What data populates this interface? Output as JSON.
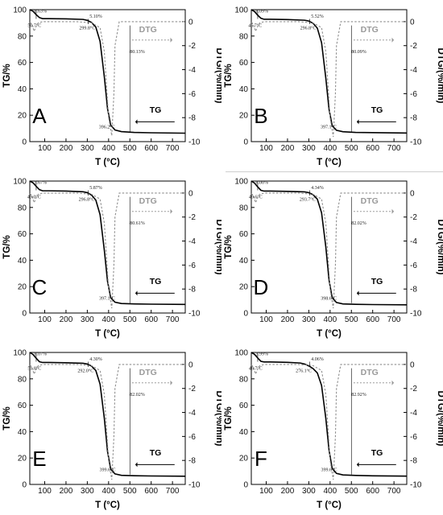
{
  "chart_data": [
    {
      "type": "line",
      "panel_label": "A",
      "xlabel": "T (°C)",
      "ylabel_left": "TG/%",
      "ylabel_right": "DTG/(%/min)",
      "xlim": [
        30,
        760
      ],
      "ylim_left": [
        0,
        100
      ],
      "ylim_right": [
        -10,
        1
      ],
      "x_ticks": [
        100,
        200,
        300,
        400,
        500,
        600,
        700
      ],
      "y_left_ticks": [
        0,
        20,
        40,
        60,
        80,
        100
      ],
      "y_right_ticks": [
        0,
        -2,
        -4,
        -6,
        -8,
        -10
      ],
      "series": [
        {
          "name": "TG",
          "style": "solid",
          "x": [
            30,
            45,
            60,
            75,
            90,
            120,
            200,
            280,
            300,
            320,
            340,
            360,
            380,
            395,
            410,
            430,
            460,
            520,
            600,
            760
          ],
          "y": [
            100,
            98.8,
            96.2,
            94.0,
            93.2,
            93.2,
            93.0,
            92.6,
            91.9,
            90.3,
            86.8,
            76.0,
            49.0,
            25.0,
            12.5,
            8.8,
            7.6,
            7.0,
            6.7,
            6.4
          ]
        },
        {
          "name": "DTG",
          "style": "dashed",
          "x": [
            30,
            40,
            50,
            60,
            70,
            90,
            150,
            250,
            320,
            360,
            380,
            400,
            415,
            425,
            430,
            450,
            500,
            600,
            760
          ],
          "y": [
            -0.05,
            -0.2,
            -0.8,
            -0.4,
            -0.1,
            0,
            0,
            0,
            -0.1,
            -0.5,
            -2.5,
            -8.0,
            -9.5,
            -6.0,
            -2.0,
            0,
            0,
            0,
            0
          ]
        }
      ],
      "annotations": [
        {
          "text": "6.63%",
          "x": 80,
          "y": 98
        },
        {
          "text": "50.7°C",
          "x": 52,
          "y": 87
        },
        {
          "text": "5.10%",
          "x": 340,
          "y": 94
        },
        {
          "text": "299.8°C",
          "x": 300,
          "y": 85
        },
        {
          "text": "80.13%",
          "x": 535,
          "y": 67
        },
        {
          "text": "396.2°C",
          "x": 392,
          "y": 10
        }
      ]
    },
    {
      "type": "line",
      "panel_label": "B",
      "xlabel": "T (°C)",
      "ylabel_left": "TG/%",
      "ylabel_right": "DTG/(%/min)",
      "xlim": [
        30,
        760
      ],
      "ylim_left": [
        0,
        100
      ],
      "ylim_right": [
        -10,
        1
      ],
      "x_ticks": [
        100,
        200,
        300,
        400,
        500,
        600,
        700
      ],
      "y_left_ticks": [
        0,
        20,
        40,
        60,
        80,
        100
      ],
      "y_right_ticks": [
        0,
        -2,
        -4,
        -6,
        -8,
        -10
      ],
      "series": [
        {
          "name": "TG",
          "style": "solid",
          "x": [
            30,
            45,
            60,
            75,
            90,
            120,
            200,
            280,
            300,
            320,
            340,
            360,
            380,
            395,
            410,
            430,
            460,
            520,
            600,
            760
          ],
          "y": [
            100,
            98.6,
            95.8,
            93.5,
            92.7,
            92.7,
            92.5,
            92.0,
            91.4,
            89.7,
            86.0,
            75.0,
            48.0,
            24.5,
            12.0,
            8.6,
            7.5,
            7.0,
            6.8,
            6.5
          ]
        },
        {
          "name": "DTG",
          "style": "dashed",
          "x": [
            30,
            40,
            50,
            60,
            70,
            90,
            150,
            250,
            320,
            360,
            380,
            400,
            415,
            425,
            430,
            450,
            500,
            600,
            760
          ],
          "y": [
            -0.05,
            -0.2,
            -0.8,
            -0.4,
            -0.1,
            0,
            0,
            0,
            -0.1,
            -0.5,
            -2.5,
            -8.0,
            -9.6,
            -6.0,
            -2.0,
            0,
            0,
            0,
            0
          ]
        }
      ],
      "annotations": [
        {
          "text": "6.09%",
          "x": 80,
          "y": 98
        },
        {
          "text": "46.7°C",
          "x": 48,
          "y": 87
        },
        {
          "text": "5.52%",
          "x": 340,
          "y": 94
        },
        {
          "text": "296.8°C",
          "x": 297,
          "y": 85
        },
        {
          "text": "80.09%",
          "x": 535,
          "y": 67
        },
        {
          "text": "397.1°C",
          "x": 393,
          "y": 10
        }
      ]
    },
    {
      "type": "line",
      "panel_label": "C",
      "xlabel": "T (°C)",
      "ylabel_left": "TG/%",
      "ylabel_right": "DTG/(%/min)",
      "xlim": [
        30,
        760
      ],
      "ylim_left": [
        0,
        100
      ],
      "ylim_right": [
        -10,
        1
      ],
      "x_ticks": [
        100,
        200,
        300,
        400,
        500,
        600,
        700
      ],
      "y_left_ticks": [
        0,
        20,
        40,
        60,
        80,
        100
      ],
      "y_right_ticks": [
        0,
        -2,
        -4,
        -6,
        -8,
        -10
      ],
      "series": [
        {
          "name": "TG",
          "style": "solid",
          "x": [
            30,
            45,
            60,
            75,
            90,
            120,
            200,
            280,
            300,
            320,
            340,
            360,
            380,
            395,
            410,
            430,
            460,
            520,
            600,
            760
          ],
          "y": [
            100,
            98.7,
            96.0,
            93.5,
            92.6,
            92.6,
            92.4,
            91.9,
            91.2,
            89.4,
            85.6,
            74.5,
            47.5,
            24.0,
            11.5,
            8.2,
            7.2,
            6.9,
            6.7,
            6.5
          ]
        },
        {
          "name": "DTG",
          "style": "dashed",
          "x": [
            30,
            40,
            50,
            60,
            70,
            90,
            150,
            250,
            320,
            360,
            380,
            400,
            415,
            425,
            430,
            450,
            500,
            600,
            760
          ],
          "y": [
            -0.05,
            -0.2,
            -0.8,
            -0.4,
            -0.1,
            0,
            0,
            0,
            -0.1,
            -0.5,
            -2.5,
            -8.0,
            -9.6,
            -6.0,
            -2.0,
            0,
            0,
            0,
            0
          ]
        }
      ],
      "annotations": [
        {
          "text": "5.67%",
          "x": 80,
          "y": 98
        },
        {
          "text": "49.0°C",
          "x": 50,
          "y": 87
        },
        {
          "text": "5.87%",
          "x": 340,
          "y": 94
        },
        {
          "text": "296.8°C",
          "x": 297,
          "y": 85
        },
        {
          "text": "80.61%",
          "x": 535,
          "y": 67
        },
        {
          "text": "397.1°C",
          "x": 393,
          "y": 10
        }
      ]
    },
    {
      "type": "line",
      "panel_label": "D",
      "xlabel": "T (°C)",
      "ylabel_left": "TG/%",
      "ylabel_right": "DTG/(%/min)",
      "xlim": [
        30,
        760
      ],
      "ylim_left": [
        0,
        100
      ],
      "ylim_right": [
        -10,
        1
      ],
      "x_ticks": [
        100,
        200,
        300,
        400,
        500,
        600,
        700
      ],
      "y_left_ticks": [
        0,
        20,
        40,
        60,
        80,
        100
      ],
      "y_right_ticks": [
        0,
        -2,
        -4,
        -6,
        -8,
        -10
      ],
      "series": [
        {
          "name": "TG",
          "style": "solid",
          "x": [
            30,
            45,
            60,
            75,
            90,
            120,
            200,
            280,
            300,
            320,
            340,
            360,
            380,
            395,
            410,
            430,
            460,
            520,
            600,
            760
          ],
          "y": [
            100,
            98.5,
            95.6,
            93.0,
            92.4,
            92.4,
            92.2,
            91.8,
            91.2,
            89.7,
            86.3,
            76.0,
            50.0,
            25.0,
            11.5,
            8.0,
            6.9,
            6.6,
            6.4,
            6.2
          ]
        },
        {
          "name": "DTG",
          "style": "dashed",
          "x": [
            30,
            40,
            50,
            60,
            70,
            90,
            150,
            250,
            320,
            360,
            380,
            400,
            415,
            425,
            430,
            450,
            500,
            600,
            760
          ],
          "y": [
            -0.05,
            -0.2,
            -0.8,
            -0.4,
            -0.1,
            0,
            0,
            0,
            -0.1,
            -0.5,
            -2.5,
            -8.0,
            -9.6,
            -6.0,
            -2.0,
            0,
            0,
            0,
            0
          ]
        }
      ],
      "annotations": [
        {
          "text": "6.00%",
          "x": 80,
          "y": 98
        },
        {
          "text": "49.6°C",
          "x": 50,
          "y": 87
        },
        {
          "text": "4.34%",
          "x": 340,
          "y": 94
        },
        {
          "text": "293.7°C",
          "x": 294,
          "y": 85
        },
        {
          "text": "82.02%",
          "x": 535,
          "y": 67
        },
        {
          "text": "398.6°C",
          "x": 394,
          "y": 10
        }
      ]
    },
    {
      "type": "line",
      "panel_label": "E",
      "xlabel": "T (°C)",
      "ylabel_left": "TG/%",
      "ylabel_right": "DTG/(%/min)",
      "xlim": [
        30,
        760
      ],
      "ylim_left": [
        0,
        100
      ],
      "ylim_right": [
        -10,
        1
      ],
      "x_ticks": [
        100,
        200,
        300,
        400,
        500,
        600,
        700
      ],
      "y_left_ticks": [
        0,
        20,
        40,
        60,
        80,
        100
      ],
      "y_right_ticks": [
        0,
        -2,
        -4,
        -6,
        -8,
        -10
      ],
      "series": [
        {
          "name": "TG",
          "style": "solid",
          "x": [
            30,
            45,
            60,
            75,
            90,
            120,
            200,
            280,
            300,
            320,
            340,
            360,
            380,
            395,
            410,
            430,
            460,
            520,
            600,
            760
          ],
          "y": [
            100,
            98.5,
            95.6,
            93.0,
            92.4,
            92.4,
            92.2,
            91.8,
            91.2,
            89.7,
            86.3,
            76.0,
            50.0,
            25.0,
            11.5,
            8.0,
            6.9,
            6.6,
            6.4,
            6.2
          ]
        },
        {
          "name": "DTG",
          "style": "dashed",
          "x": [
            30,
            40,
            50,
            60,
            70,
            90,
            150,
            250,
            320,
            360,
            380,
            400,
            415,
            425,
            430,
            450,
            500,
            600,
            760
          ],
          "y": [
            -0.05,
            -0.2,
            -0.8,
            -0.4,
            -0.1,
            0,
            0,
            0,
            -0.1,
            -0.5,
            -2.5,
            -8.0,
            -9.6,
            -6.0,
            -2.0,
            0,
            0,
            0,
            0
          ]
        }
      ],
      "annotations": [
        {
          "text": "6.07%",
          "x": 80,
          "y": 98
        },
        {
          "text": "51.8°C",
          "x": 52,
          "y": 87
        },
        {
          "text": "4.30%",
          "x": 340,
          "y": 94
        },
        {
          "text": "292.0°C",
          "x": 292,
          "y": 85
        },
        {
          "text": "82.02%",
          "x": 535,
          "y": 67
        },
        {
          "text": "399.6°C",
          "x": 395,
          "y": 10
        }
      ]
    },
    {
      "type": "line",
      "panel_label": "F",
      "xlabel": "T (°C)",
      "ylabel_left": "TG/%",
      "ylabel_right": "DTG/(%/min)",
      "xlim": [
        30,
        760
      ],
      "ylim_left": [
        0,
        100
      ],
      "ylim_right": [
        -10,
        1
      ],
      "x_ticks": [
        100,
        200,
        300,
        400,
        500,
        600,
        700
      ],
      "y_left_ticks": [
        0,
        20,
        40,
        60,
        80,
        100
      ],
      "y_right_ticks": [
        0,
        -2,
        -4,
        -6,
        -8,
        -10
      ],
      "series": [
        {
          "name": "TG",
          "style": "solid",
          "x": [
            30,
            45,
            60,
            75,
            90,
            120,
            200,
            260,
            280,
            300,
            320,
            340,
            360,
            380,
            395,
            410,
            430,
            460,
            520,
            600,
            760
          ],
          "y": [
            100,
            98.6,
            95.8,
            93.3,
            92.8,
            92.8,
            92.5,
            92.0,
            91.2,
            89.8,
            87.8,
            84.5,
            75.0,
            50.0,
            26.0,
            12.0,
            8.4,
            7.2,
            6.8,
            6.5,
            6.3
          ]
        },
        {
          "name": "DTG",
          "style": "dashed",
          "x": [
            30,
            40,
            50,
            60,
            70,
            90,
            150,
            250,
            320,
            360,
            380,
            400,
            415,
            425,
            430,
            450,
            500,
            600,
            760
          ],
          "y": [
            -0.05,
            -0.2,
            -0.8,
            -0.4,
            -0.1,
            0,
            0,
            0,
            -0.1,
            -0.5,
            -2.5,
            -8.0,
            -9.6,
            -6.0,
            -2.0,
            0,
            0,
            0,
            0
          ]
        }
      ],
      "annotations": [
        {
          "text": "5.99%",
          "x": 80,
          "y": 98
        },
        {
          "text": "48.7°C",
          "x": 50,
          "y": 87
        },
        {
          "text": "4.06%",
          "x": 340,
          "y": 94
        },
        {
          "text": "276.1°C",
          "x": 276,
          "y": 85
        },
        {
          "text": "82.92%",
          "x": 535,
          "y": 67
        },
        {
          "text": "399.6°C",
          "x": 395,
          "y": 10
        }
      ]
    }
  ]
}
